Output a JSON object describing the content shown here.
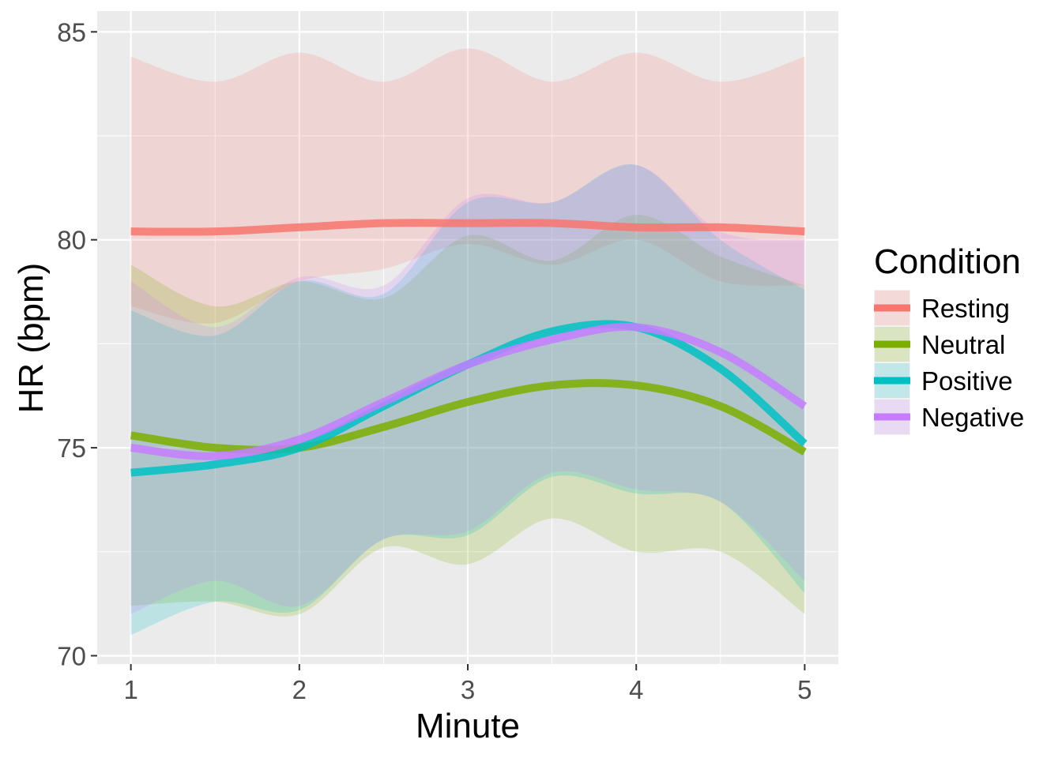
{
  "chart_data": {
    "type": "line",
    "title": "",
    "xlabel": "Minute",
    "ylabel": "HR (bpm)",
    "xlim": [
      0.8,
      5.2
    ],
    "ylim": [
      69.8,
      85.5
    ],
    "x_ticks": [
      1,
      2,
      3,
      4,
      5
    ],
    "y_ticks": [
      70,
      75,
      80,
      85
    ],
    "grid": true,
    "legend": {
      "title": "Condition",
      "position": "right"
    },
    "x": [
      1,
      1.5,
      2,
      2.5,
      3,
      3.5,
      4,
      4.5,
      5
    ],
    "series": [
      {
        "name": "Resting",
        "color": "#F8766D",
        "values": [
          80.2,
          80.2,
          80.3,
          80.4,
          80.4,
          80.4,
          80.3,
          80.3,
          80.2
        ],
        "lower": [
          78.4,
          78.0,
          79.0,
          79.3,
          79.9,
          79.4,
          80.0,
          79.0,
          78.9
        ],
        "upper": [
          84.4,
          83.8,
          84.5,
          83.8,
          84.6,
          83.8,
          84.5,
          83.8,
          84.4
        ]
      },
      {
        "name": "Neutral",
        "color": "#7CAE00",
        "values": [
          75.3,
          75.0,
          75.0,
          75.5,
          76.1,
          76.5,
          76.5,
          76.0,
          74.9
        ],
        "lower": [
          71.2,
          71.3,
          71.0,
          72.6,
          72.2,
          73.3,
          72.5,
          72.5,
          71.0
        ],
        "upper": [
          79.4,
          78.4,
          79.0,
          78.6,
          80.1,
          79.5,
          80.6,
          79.6,
          78.9
        ]
      },
      {
        "name": "Positive",
        "color": "#00BFC4",
        "values": [
          74.4,
          74.6,
          75.0,
          76.0,
          77.0,
          77.8,
          77.9,
          76.9,
          75.1
        ],
        "lower": [
          70.5,
          71.3,
          71.1,
          72.8,
          72.9,
          74.3,
          73.9,
          73.7,
          71.5
        ],
        "upper": [
          78.3,
          77.7,
          79.0,
          78.7,
          80.9,
          80.9,
          81.8,
          80.0,
          78.8
        ]
      },
      {
        "name": "Negative",
        "color": "#C77CFF",
        "values": [
          75.0,
          74.8,
          75.2,
          76.1,
          77.0,
          77.6,
          77.9,
          77.3,
          76.0
        ],
        "lower": [
          71.0,
          71.8,
          71.2,
          72.8,
          73.0,
          74.4,
          74.0,
          73.7,
          71.8
        ],
        "upper": [
          79.0,
          77.9,
          79.1,
          78.9,
          81.0,
          80.9,
          81.8,
          80.2,
          80.0
        ]
      }
    ]
  }
}
